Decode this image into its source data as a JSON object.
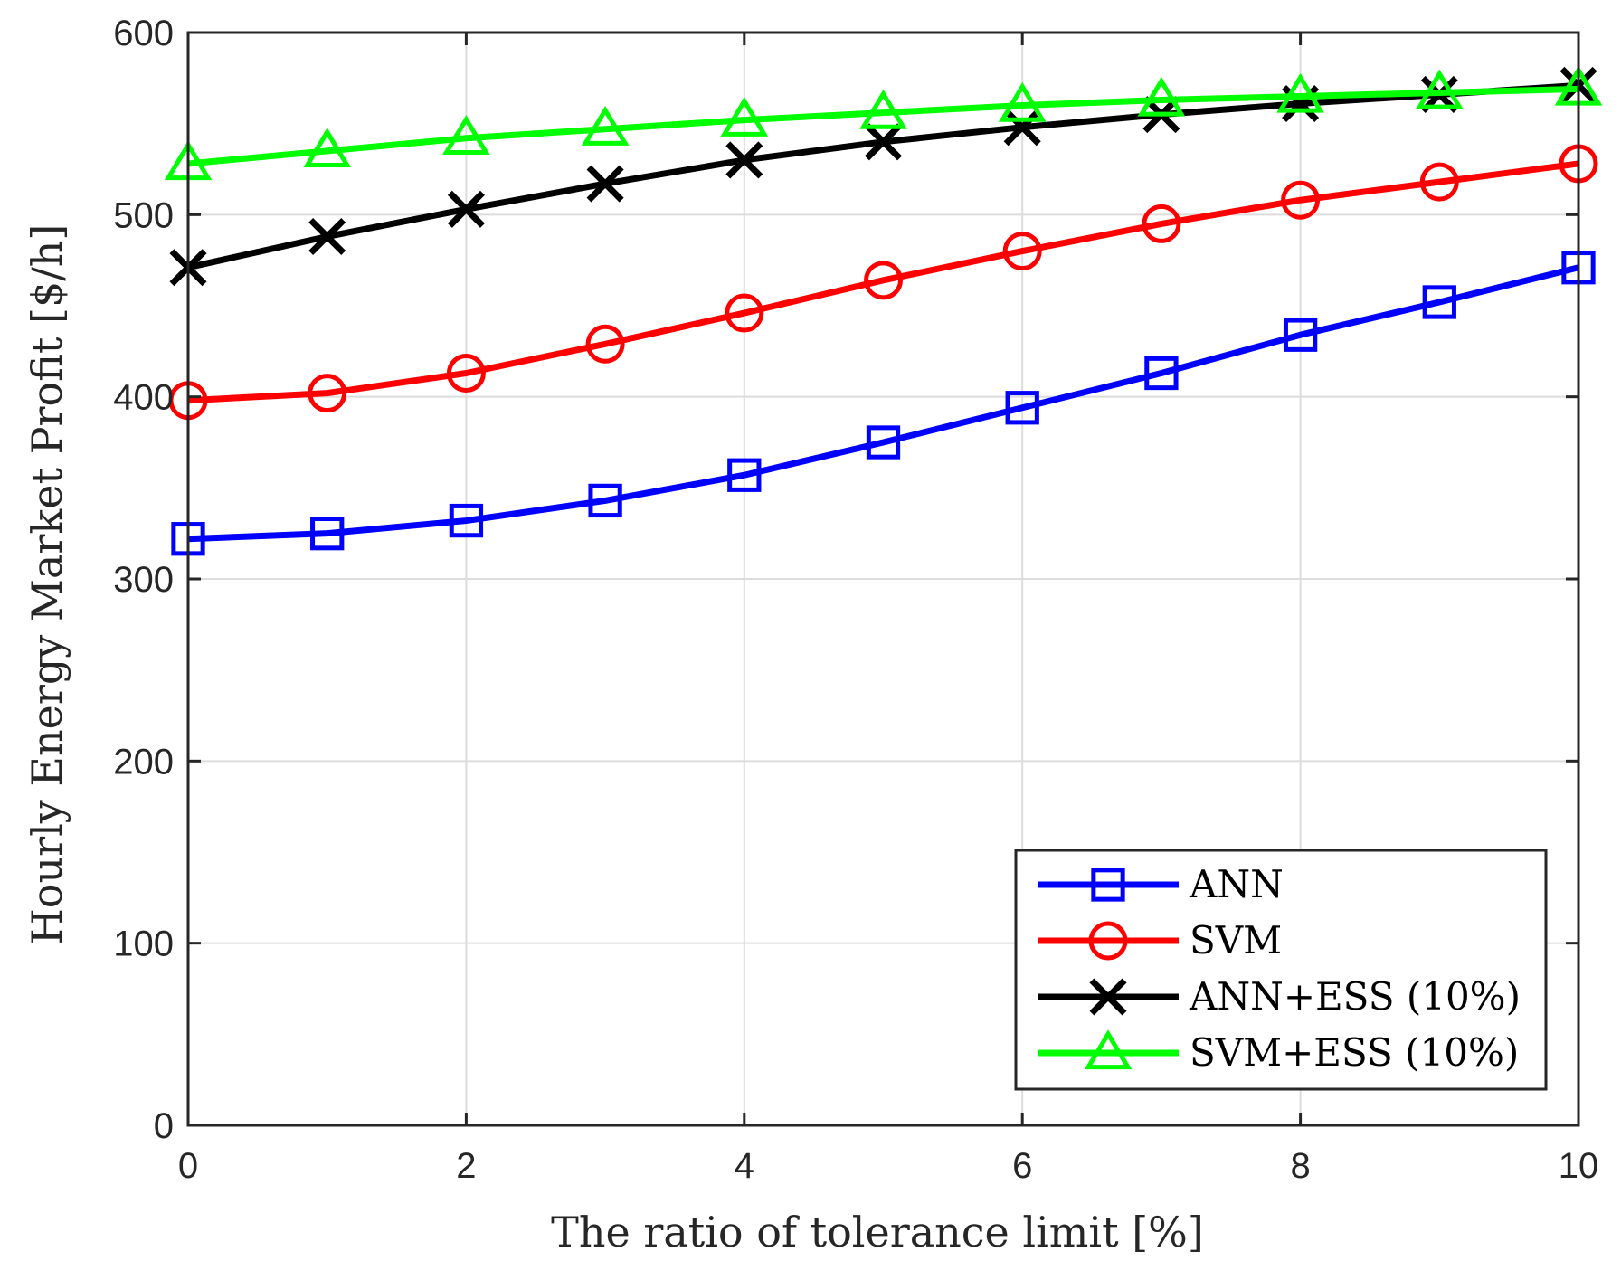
{
  "chart_data": {
    "type": "line",
    "title": "",
    "xlabel": "The ratio of tolerance limit [%]",
    "ylabel": "Hourly Energy Market Profit [$/h]",
    "xlim": [
      0,
      10
    ],
    "ylim": [
      0,
      600
    ],
    "xticks": [
      0,
      2,
      4,
      6,
      8,
      10
    ],
    "yticks": [
      0,
      100,
      200,
      300,
      400,
      500,
      600
    ],
    "grid": true,
    "legend_position": "bottom-right",
    "x": [
      0,
      1,
      2,
      3,
      4,
      5,
      6,
      7,
      8,
      9,
      10
    ],
    "series": [
      {
        "name": "ANN",
        "color": "#0000ff",
        "marker": "square",
        "values": [
          322,
          325,
          332,
          343,
          357,
          375,
          394,
          413,
          434,
          452,
          471
        ]
      },
      {
        "name": "SVM",
        "color": "#ff0000",
        "marker": "circle",
        "values": [
          398,
          402,
          413,
          429,
          446,
          464,
          480,
          495,
          508,
          518,
          528
        ]
      },
      {
        "name": "ANN+ESS (10%)",
        "color": "#000000",
        "marker": "x",
        "values": [
          471,
          488,
          503,
          517,
          530,
          540,
          548,
          555,
          561,
          566,
          571
        ]
      },
      {
        "name": "SVM+ESS (10%)",
        "color": "#00ff00",
        "marker": "triangle",
        "values": [
          528,
          535,
          542,
          547,
          552,
          556,
          560,
          563,
          565,
          567,
          569
        ]
      }
    ]
  }
}
